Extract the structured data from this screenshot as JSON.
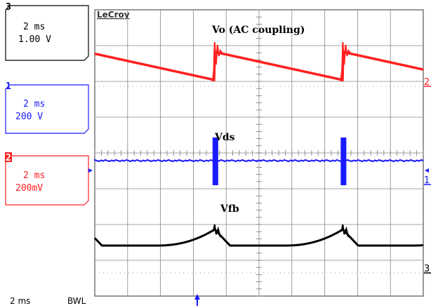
{
  "brand": "LeCroy",
  "channels": [
    {
      "id": "3",
      "timebase": "2 ms",
      "scale": "1.00 V",
      "color": "#000000"
    },
    {
      "id": "1",
      "timebase": "2 ms",
      "scale": "200 V",
      "color": "#1a1aff"
    },
    {
      "id": "2",
      "timebase": "2 ms",
      "scale": "200mV",
      "color": "#ff2020"
    }
  ],
  "status": {
    "timebase": "2 ms",
    "bwl": "BWL"
  },
  "right_markers": {
    "ch2": "2",
    "ch1": "1",
    "ch3": "3"
  },
  "chart_data": {
    "type": "line",
    "grid": {
      "divisions_x": 10,
      "divisions_y": 8,
      "on": true
    },
    "period_divisions": 3.9,
    "series": [
      {
        "name": "Vo (AC coupling)",
        "color": "#ff2020",
        "shape": "sawtooth_ripple",
        "label": "Vo (AC coupling)"
      },
      {
        "name": "Vds",
        "color": "#1a1aff",
        "shape": "spike_pulses",
        "label": "Vds"
      },
      {
        "name": "Vfb",
        "color": "#000000",
        "shape": "exp_rise_spike",
        "label": "Vfb"
      }
    ],
    "spike_times_div": [
      3.65,
      7.55
    ]
  }
}
